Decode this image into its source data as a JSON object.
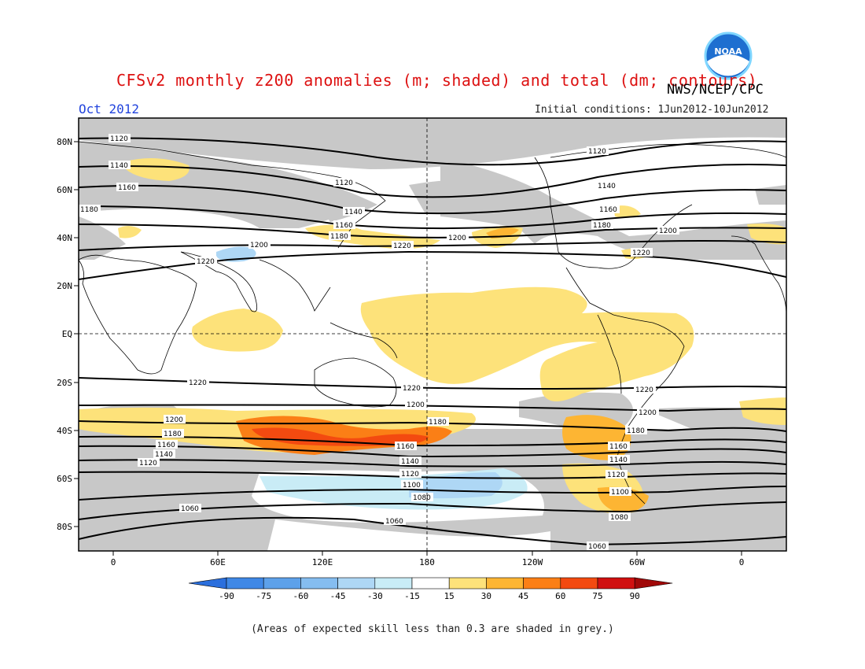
{
  "title": "CFSv2 monthly z200 anomalies (m; shaded) and total (dm; contours)",
  "agency": "NWS/NCEP/CPC",
  "period": "Oct 2012",
  "initial_conditions": "Initial conditions: 1Jun2012-10Jun2012",
  "footnote": "(Areas of expected skill less than 0.3 are shaded in grey.)",
  "logo_text": "NOAA",
  "map": {
    "lon_labels": [
      "0",
      "60E",
      "120E",
      "180",
      "120W",
      "60W",
      "0"
    ],
    "lat_labels": [
      "80N",
      "60N",
      "40N",
      "20N",
      "EQ",
      "20S",
      "40S",
      "60S",
      "80S"
    ],
    "contour_levels": [
      "1060",
      "1080",
      "1100",
      "1120",
      "1140",
      "1160",
      "1180",
      "1200",
      "1220"
    ]
  },
  "colorbar": {
    "ticks": [
      "-90",
      "-75",
      "-60",
      "-45",
      "-30",
      "-15",
      "15",
      "30",
      "45",
      "60",
      "75",
      "90"
    ],
    "colors": [
      "#2b6fdd",
      "#3f88e6",
      "#5da1ea",
      "#85bdf0",
      "#aed7f5",
      "#c9ecf6",
      "#ffffff",
      "#fde27a",
      "#fdb533",
      "#fb7f16",
      "#f34a10",
      "#d01010",
      "#a00808"
    ]
  }
}
